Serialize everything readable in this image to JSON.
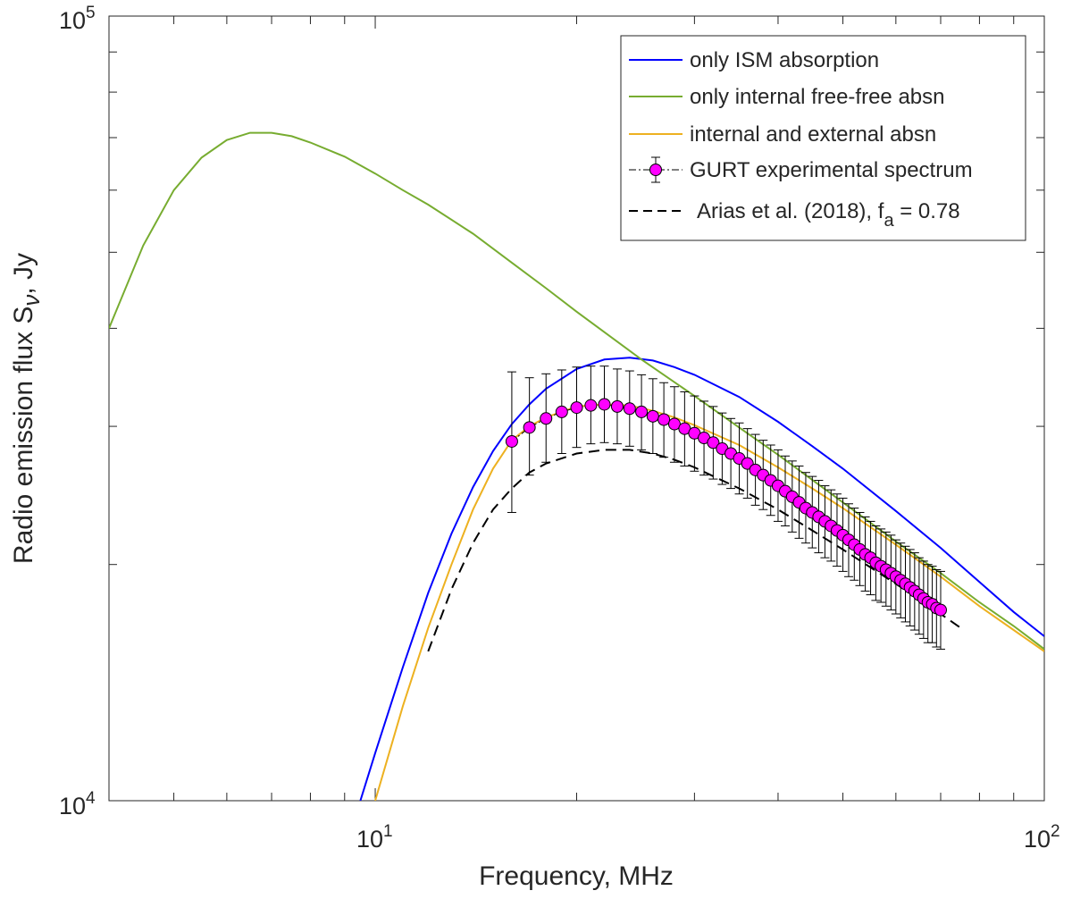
{
  "chart_data": {
    "type": "line",
    "title": "",
    "xlabel": "Frequency, MHz",
    "ylabel_main": "Radio emission flux S",
    "ylabel_sub": "ν",
    "ylabel_tail": ", Jy",
    "xscale": "log",
    "yscale": "log",
    "xlim": [
      4,
      100
    ],
    "ylim": [
      10000,
      100000
    ],
    "x_tick_labels": [
      {
        "value": 10,
        "base": "10",
        "exp": "1"
      },
      {
        "value": 100,
        "base": "10",
        "exp": "2"
      }
    ],
    "y_tick_labels": [
      {
        "value": 10000,
        "base": "10",
        "exp": "4"
      },
      {
        "value": 100000,
        "base": "10",
        "exp": "5"
      }
    ],
    "legend_position": "top-right",
    "series": [
      {
        "name": "only ISM absorption",
        "color": "#0000ff",
        "style": "solid",
        "x": [
          9.5,
          10,
          11,
          12,
          13,
          14,
          15,
          16,
          17,
          18,
          20,
          22,
          24,
          26,
          28,
          30,
          35,
          40,
          45,
          50,
          60,
          70,
          80,
          90,
          100
        ],
        "y": [
          10000,
          11500,
          14800,
          18400,
          21900,
          25100,
          27900,
          30200,
          32000,
          33500,
          35500,
          36500,
          36700,
          36400,
          35700,
          34900,
          32700,
          30400,
          28300,
          26500,
          23400,
          21000,
          19000,
          17400,
          16200
        ]
      },
      {
        "name": "only internal free-free absn",
        "color": "#77ac30",
        "style": "solid",
        "x": [
          4,
          4.5,
          5,
          5.5,
          6,
          6.5,
          7,
          7.5,
          8,
          9,
          10,
          11,
          12,
          14,
          16,
          18,
          20,
          25,
          30,
          35,
          40,
          50,
          60,
          70,
          80,
          90,
          100
        ],
        "y": [
          40000,
          51000,
          60000,
          66000,
          69500,
          71000,
          71000,
          70300,
          69000,
          66200,
          63000,
          60000,
          57500,
          52800,
          48500,
          45000,
          42000,
          36500,
          32800,
          29900,
          27600,
          24000,
          21400,
          19500,
          17900,
          16700,
          15600
        ]
      },
      {
        "name": "internal and external absn",
        "color": "#edb120",
        "style": "solid",
        "x": [
          10,
          11,
          12,
          13,
          14,
          15,
          16,
          17,
          18,
          20,
          22,
          24,
          26,
          28,
          30,
          35,
          40,
          45,
          50,
          60,
          70,
          80,
          90,
          100
        ],
        "y": [
          10000,
          13200,
          16600,
          20000,
          23500,
          26500,
          28800,
          30000,
          30800,
          31800,
          32000,
          31900,
          31400,
          30800,
          30100,
          28400,
          26600,
          25000,
          23600,
          21200,
          19300,
          17700,
          16500,
          15500
        ]
      },
      {
        "name": "GURT experimental spectrum",
        "color": "#ff00ff",
        "style": "markers",
        "x": [
          16,
          17,
          18,
          19,
          20,
          21,
          22,
          23,
          24,
          25,
          26,
          27,
          28,
          29,
          30,
          31,
          32,
          33,
          34,
          35,
          36,
          37,
          38,
          39,
          40,
          41,
          42,
          43,
          44,
          45,
          46,
          47,
          48,
          49,
          50,
          51,
          52,
          53,
          54,
          55,
          56,
          57,
          58,
          59,
          60,
          61,
          62,
          63,
          64,
          65,
          66,
          67,
          68,
          69,
          70
        ],
        "y": [
          28700,
          29900,
          30700,
          31300,
          31700,
          31900,
          32000,
          31800,
          31600,
          31300,
          30900,
          30600,
          30200,
          29800,
          29400,
          29000,
          28600,
          28100,
          27700,
          27300,
          26900,
          26400,
          26000,
          25600,
          25200,
          24800,
          24400,
          24000,
          23600,
          23300,
          23000,
          22700,
          22400,
          22100,
          21800,
          21500,
          21200,
          20900,
          20600,
          20400,
          20100,
          19900,
          19700,
          19500,
          19300,
          19100,
          18900,
          18700,
          18500,
          18300,
          18100,
          17900,
          17800,
          17600,
          17500
        ],
        "err_low": [
          5400,
          3900,
          3700,
          3600,
          3500,
          3400,
          3400,
          3300,
          3300,
          3300,
          3200,
          3200,
          3200,
          3100,
          3100,
          3000,
          2900,
          2800,
          2700,
          2700,
          2600,
          2600,
          2500,
          2500,
          2500,
          2400,
          2400,
          2400,
          2300,
          2300,
          2300,
          2300,
          2200,
          2200,
          2200,
          2200,
          2100,
          2100,
          2100,
          2100,
          2100,
          2000,
          2000,
          2000,
          2000,
          2000,
          2000,
          2000,
          2000,
          2000,
          2000,
          2000,
          1900,
          1900,
          1900
        ],
        "err_high": [
          6500,
          4700,
          4300,
          4100,
          4000,
          3900,
          3800,
          3700,
          3700,
          3600,
          3600,
          3500,
          3500,
          3400,
          3400,
          3300,
          3200,
          3100,
          3000,
          3000,
          2900,
          2900,
          2800,
          2800,
          2800,
          2700,
          2700,
          2700,
          2600,
          2600,
          2600,
          2500,
          2500,
          2500,
          2500,
          2400,
          2400,
          2400,
          2400,
          2300,
          2300,
          2300,
          2300,
          2300,
          2200,
          2200,
          2200,
          2200,
          2200,
          2100,
          2100,
          2100,
          2100,
          2100,
          2100
        ]
      },
      {
        "name": "Arias et al. (2018),  f",
        "name_sub": "a",
        "name_tail": " = 0.78",
        "color": "#000000",
        "style": "dashed",
        "x": [
          12,
          13,
          14,
          15,
          16,
          17,
          18,
          20,
          22,
          24,
          26,
          28,
          30,
          35,
          40,
          45,
          50,
          60,
          70,
          75
        ],
        "y": [
          15500,
          18600,
          21300,
          23500,
          25000,
          26200,
          26900,
          27700,
          28000,
          28000,
          27700,
          27200,
          26600,
          25000,
          23500,
          22100,
          20900,
          18900,
          17300,
          16600
        ]
      }
    ]
  }
}
